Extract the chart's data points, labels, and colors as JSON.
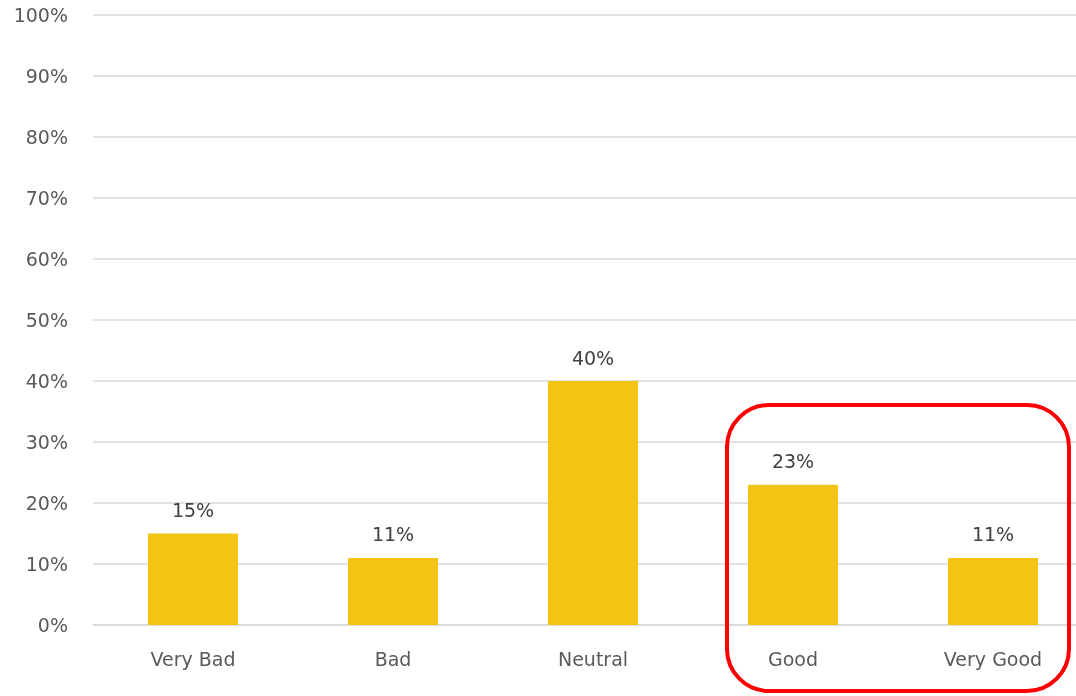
{
  "chart_data": {
    "type": "bar",
    "categories": [
      "Very Bad",
      "Bad",
      "Neutral",
      "Good",
      "Very Good"
    ],
    "values": [
      15,
      11,
      40,
      23,
      11
    ],
    "color": "#f2c515",
    "value_labels": [
      "15%",
      "11%",
      "40%",
      "23%",
      "11%"
    ],
    "ylim": [
      0,
      100
    ],
    "yticks": [
      {
        "value": 0,
        "label": "0%"
      },
      {
        "value": 10,
        "label": "10%"
      },
      {
        "value": 20,
        "label": "20%"
      },
      {
        "value": 30,
        "label": "30%"
      },
      {
        "value": 40,
        "label": "40%"
      },
      {
        "value": 50,
        "label": "50%"
      },
      {
        "value": 60,
        "label": "60%"
      },
      {
        "value": 70,
        "label": "70%"
      },
      {
        "value": 80,
        "label": "80%"
      },
      {
        "value": 90,
        "label": "90%"
      },
      {
        "value": 100,
        "label": "100%"
      }
    ],
    "grid": "y"
  }
}
